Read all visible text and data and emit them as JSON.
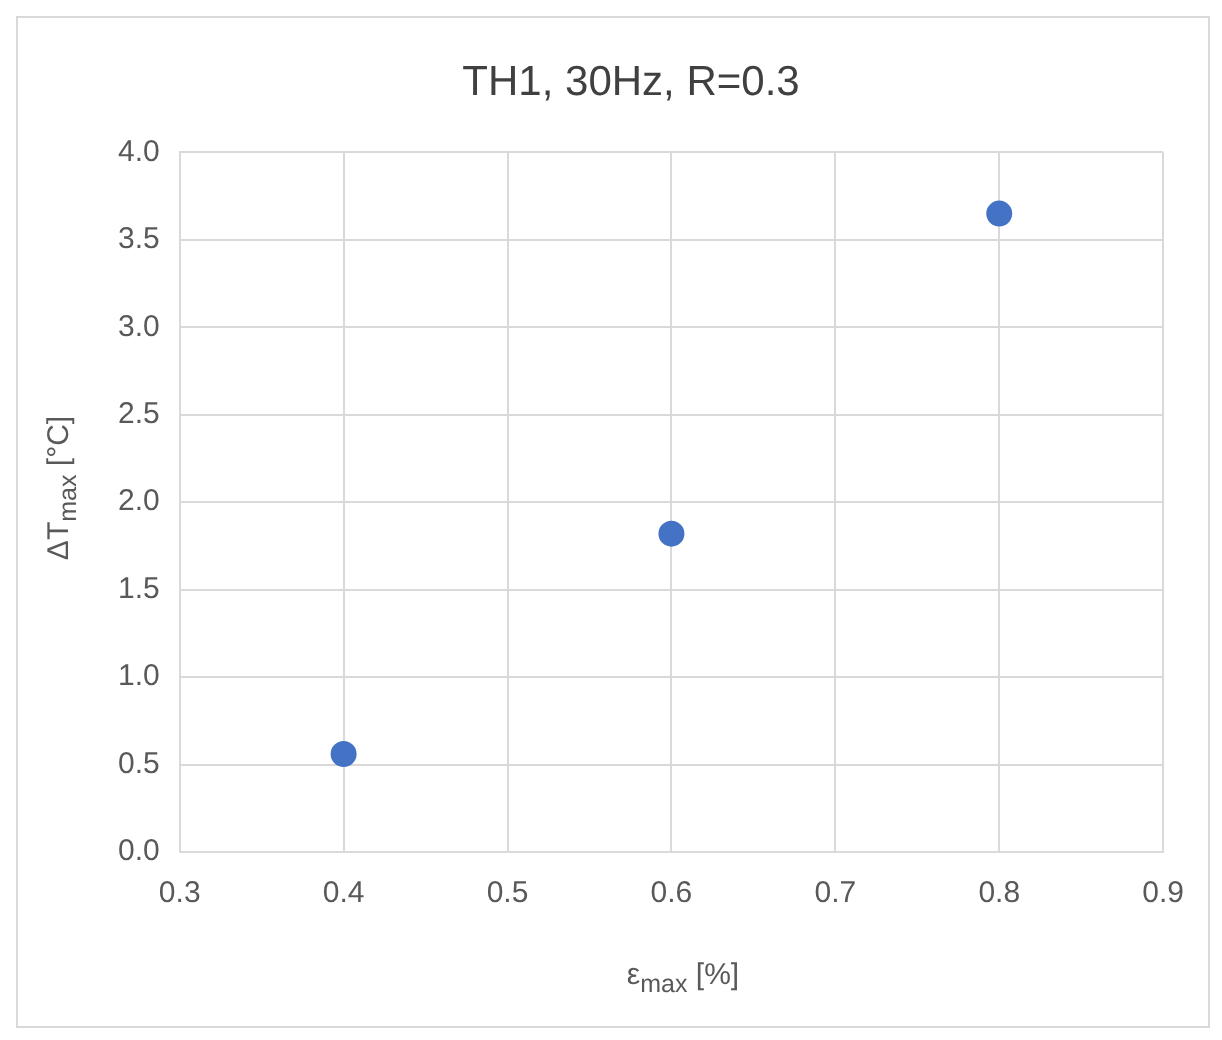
{
  "chart_data": {
    "type": "scatter",
    "title": "TH1, 30Hz, R=0.3",
    "xlabel": "ε$_{max}$ [%]",
    "ylabel": "ΔT$_{max}$ [°C]",
    "x": [
      0.4,
      0.6,
      0.8
    ],
    "series": [
      {
        "color": "#4472c4",
        "values": [
          0.56,
          1.82,
          3.65
        ]
      }
    ],
    "xlim": [
      0.3,
      0.9
    ],
    "xticks": [
      {
        "value": 0.3,
        "label": "0.3"
      },
      {
        "value": 0.4,
        "label": "0.4"
      },
      {
        "value": 0.5,
        "label": "0.5"
      },
      {
        "value": 0.6,
        "label": "0.6"
      },
      {
        "value": 0.7,
        "label": "0.7"
      },
      {
        "value": 0.8,
        "label": "0.8"
      },
      {
        "value": 0.9,
        "label": "0.9"
      }
    ],
    "ylim": [
      0,
      4
    ],
    "yticks": [
      {
        "value": 0,
        "label": "0.0"
      },
      {
        "value": 0.5,
        "label": "0.5"
      },
      {
        "value": 1,
        "label": "1.0"
      },
      {
        "value": 1.5,
        "label": "1.5"
      },
      {
        "value": 2,
        "label": "2.0"
      },
      {
        "value": 2.5,
        "label": "2.5"
      },
      {
        "value": 3,
        "label": "3.0"
      },
      {
        "value": 3.5,
        "label": "3.5"
      },
      {
        "value": 4,
        "label": "4.0"
      }
    ],
    "grid": true,
    "legend": false,
    "marker": "circle"
  }
}
